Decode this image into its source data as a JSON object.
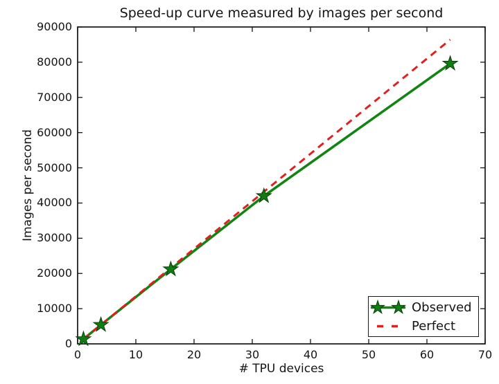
{
  "chart_data": {
    "type": "line",
    "title": "Speed-up curve measured by images per second",
    "xlabel": "# TPU devices",
    "ylabel": "Images per second",
    "xlim": [
      0,
      70
    ],
    "ylim": [
      0,
      90000
    ],
    "xticks": [
      0,
      10,
      20,
      30,
      40,
      50,
      60,
      70
    ],
    "yticks": [
      0,
      10000,
      20000,
      30000,
      40000,
      50000,
      60000,
      70000,
      80000,
      90000
    ],
    "grid": false,
    "axis_color": "#141414",
    "background": "#ffffff",
    "legend_position": "lower right",
    "series": [
      {
        "name": "Observed",
        "color": "#118411",
        "line": "solid",
        "line_width": 3.6,
        "marker": "star",
        "marker_color": "#0f7d12",
        "marker_edge": "#0a3d0a",
        "x": [
          1,
          4,
          16,
          32,
          64
        ],
        "y": [
          1350,
          5400,
          21200,
          42000,
          79600
        ]
      },
      {
        "name": "Perfect",
        "color": "#e02020",
        "line": "dashed",
        "line_width": 3,
        "marker": "none",
        "x": [
          1,
          64
        ],
        "y": [
          1350,
          86400
        ]
      }
    ]
  }
}
